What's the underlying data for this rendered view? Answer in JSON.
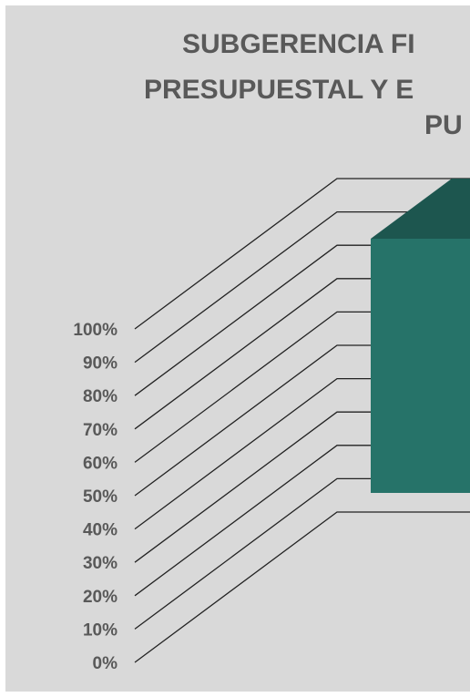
{
  "chart_data": {
    "type": "bar",
    "style": "3d-column",
    "title_lines": [
      "SUBGERENCIA FI",
      "PRESUPUESTAL Y E",
      "PU"
    ],
    "y_ticks": [
      "0%",
      "10%",
      "20%",
      "30%",
      "40%",
      "50%",
      "60%",
      "70%",
      "80%",
      "90%",
      "100%"
    ],
    "ylim": [
      0,
      100
    ],
    "grid": true,
    "series": [
      {
        "values": [
          100
        ]
      }
    ],
    "colors": {
      "bar_front": "#267369",
      "bar_top": "#1d564f",
      "background": "#d9d9d9",
      "text": "#595959"
    }
  }
}
